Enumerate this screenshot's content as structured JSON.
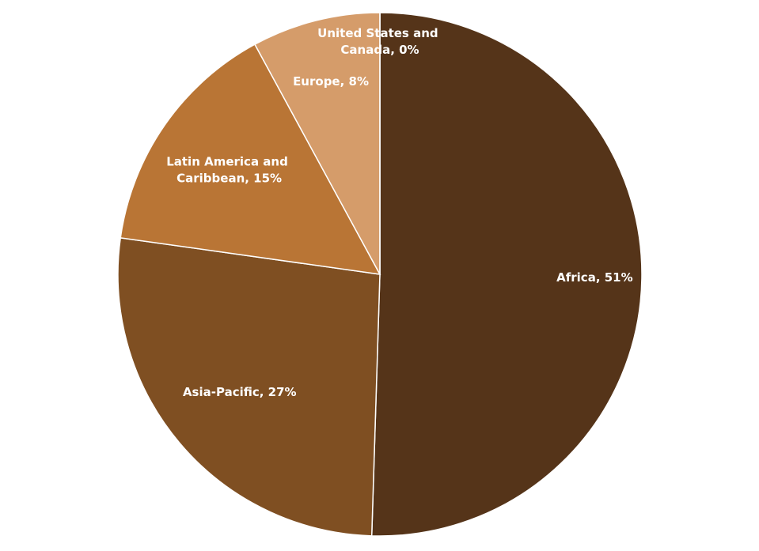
{
  "chart_data": {
    "type": "pie",
    "values": [
      51,
      27,
      15,
      8,
      0
    ],
    "value_labels": [
      "Africa, 51%",
      "Asia-Pacific, 27%",
      "Latin America and Caribbean, 15%",
      "Europe, 8%",
      "United States and Canada, 0%"
    ],
    "colors": [
      "#553419",
      "#7f4f22",
      "#b97535",
      "#d59c6a",
      "#e6c49c"
    ]
  }
}
